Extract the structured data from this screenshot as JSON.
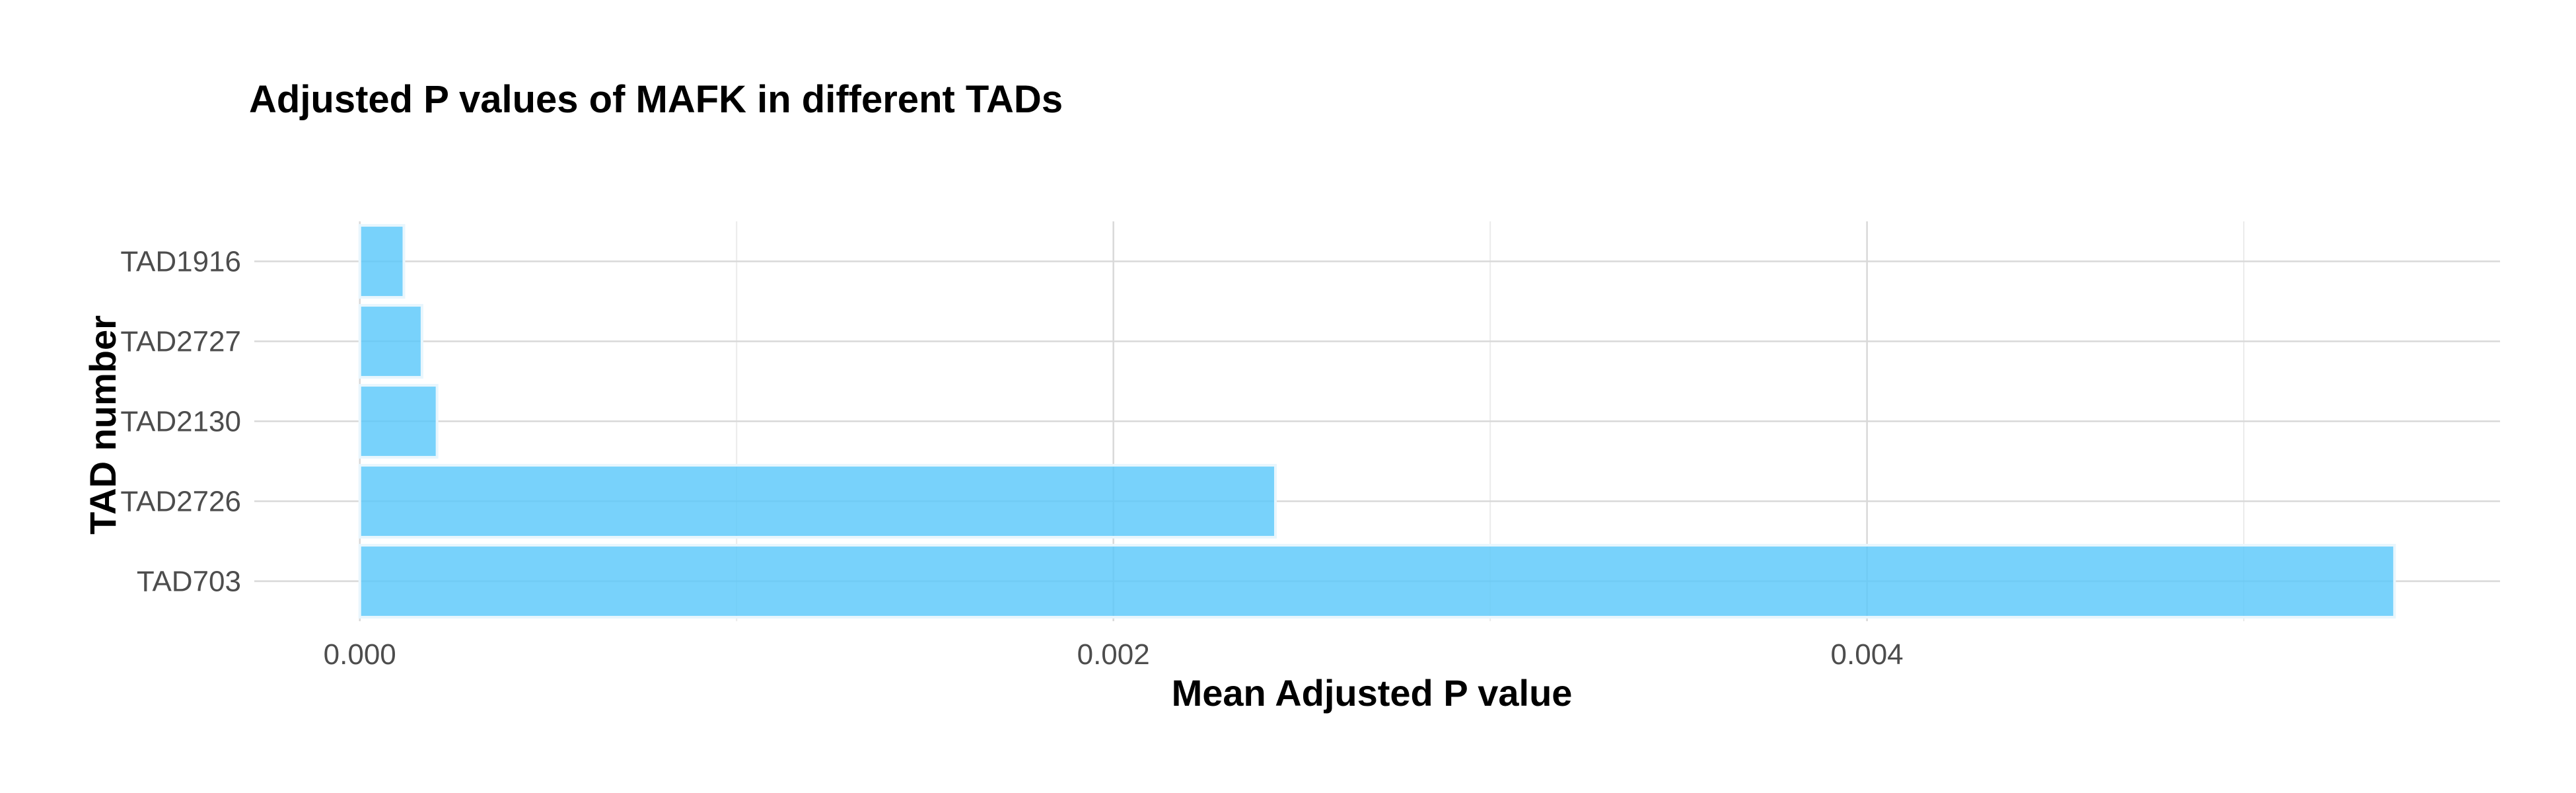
{
  "chart_data": {
    "type": "bar",
    "orientation": "horizontal",
    "title": "Adjusted P values of MAFK in different TADs",
    "xlabel": "Mean Adjusted P value",
    "ylabel": "TAD number",
    "categories": [
      "TAD1916",
      "TAD2727",
      "TAD2130",
      "TAD2726",
      "TAD703"
    ],
    "values": [
      0.000117,
      0.000165,
      0.000205,
      0.00243,
      0.0054
    ],
    "xlim": [
      -0.00028,
      0.00568
    ],
    "xticks": [
      0.0,
      0.002,
      0.004
    ],
    "xtick_labels": [
      "0.000",
      "0.002",
      "0.004"
    ],
    "grid": true,
    "legend": "none",
    "colors": {
      "bar_fill": "#5ac8fa",
      "bar_stroke": "#e8f6fd",
      "grid_major": "#d9d9d9",
      "grid_minor": "#ebebeb",
      "text": "#000000",
      "tick_text": "#4d4d4d"
    }
  }
}
